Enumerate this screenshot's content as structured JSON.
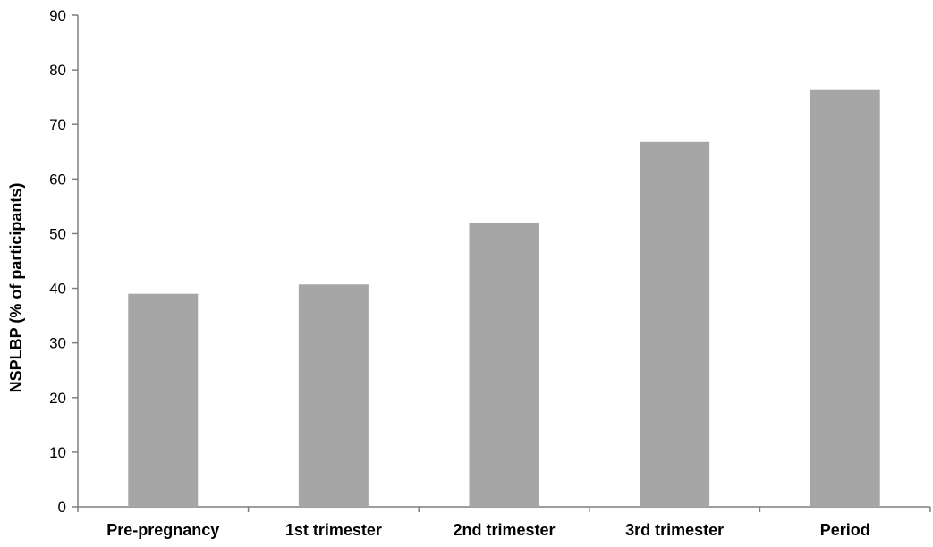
{
  "chart_data": {
    "type": "bar",
    "title": "",
    "xlabel": "",
    "ylabel": "NSPLBP (% of participants)",
    "categories": [
      "Pre-pregnancy",
      "1st trimester",
      "2nd trimester",
      "3rd trimester",
      "Period"
    ],
    "values": [
      39,
      40.7,
      52,
      66.8,
      76.3
    ],
    "ylim": [
      0,
      90
    ],
    "yticks": [
      0,
      10,
      20,
      30,
      40,
      50,
      60,
      70,
      80,
      90
    ],
    "grid": false,
    "legend": "none",
    "colors": {
      "bar": "#a6a6a6",
      "axis": "#7f7f7f",
      "text": "#000000"
    }
  }
}
